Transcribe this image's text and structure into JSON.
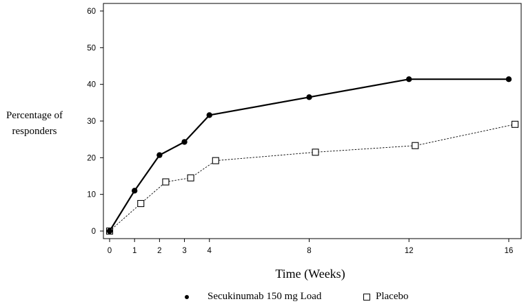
{
  "chart_data": {
    "type": "line",
    "ylabel_lines": [
      "Percentage of",
      "responders"
    ],
    "xlabel": "Time (Weeks)",
    "x_ticks": [
      0,
      1,
      2,
      3,
      4,
      8,
      12,
      16
    ],
    "y_ticks": [
      0,
      10,
      20,
      30,
      40,
      50,
      60
    ],
    "xlim": [
      0,
      16
    ],
    "ylim": [
      0,
      60
    ],
    "grid": false,
    "legend_position": "bottom",
    "series": [
      {
        "name": "Secukinumab 150 mg Load",
        "marker": "filled-circle",
        "line": "solid",
        "color": "#000000",
        "x": [
          0,
          1,
          2,
          3,
          4,
          8,
          12,
          16
        ],
        "y": [
          0,
          11.0,
          20.7,
          24.3,
          31.6,
          36.5,
          41.4,
          41.4
        ]
      },
      {
        "name": "Placebo",
        "marker": "open-square",
        "line": "dotted",
        "color": "#000000",
        "x": [
          0,
          1.25,
          2.25,
          3.25,
          4.25,
          8.25,
          12.25,
          16.25
        ],
        "y": [
          0,
          7.5,
          13.4,
          14.5,
          19.2,
          21.5,
          23.3,
          29.1
        ]
      }
    ]
  }
}
